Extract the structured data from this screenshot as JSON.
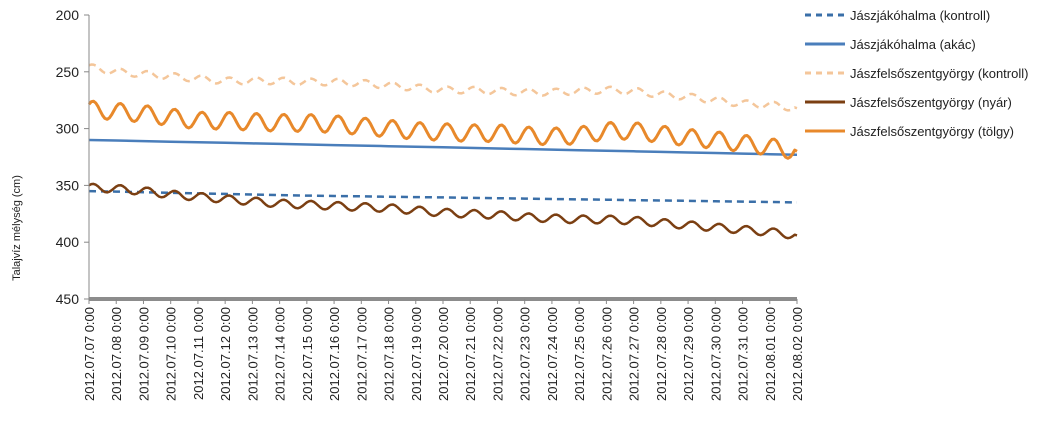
{
  "chart_data": {
    "type": "line",
    "ylabel": "Talajvíz mélység (cm)",
    "ylim": [
      200,
      450
    ],
    "y_inverted": true,
    "yticks": [
      200,
      250,
      300,
      350,
      400,
      450
    ],
    "grid": false,
    "legend_position": "right",
    "x_categories": [
      "2012.07.07 0:00",
      "2012.07.08 0:00",
      "2012.07.09 0:00",
      "2012.07.10 0:00",
      "2012.07.11 0:00",
      "2012.07.12 0:00",
      "2012.07.13 0:00",
      "2012.07.14 0:00",
      "2012.07.15 0:00",
      "2012.07.16 0:00",
      "2012.07.17 0:00",
      "2012.07.18 0:00",
      "2012.07.19 0:00",
      "2012.07.20 0:00",
      "2012.07.21 0:00",
      "2012.07.22 0:00",
      "2012.07.23 0:00",
      "2012.07.24 0:00",
      "2012.07.25 0:00",
      "2012.07.26 0:00",
      "2012.07.27 0:00",
      "2012.07.28 0:00",
      "2012.07.29 0:00",
      "2012.07.30 0:00",
      "2012.07.31 0:00",
      "2012.08.01 0:00",
      "2012.08.02 0:00"
    ],
    "series": [
      {
        "name": "Jászjákóhalma (kontroll)",
        "color": "#3a6fa8",
        "dash": "dashed",
        "values": [
          355,
          355.5,
          356,
          356.5,
          357,
          357.5,
          358,
          358.5,
          359,
          359.3,
          359.6,
          360,
          360.3,
          360.6,
          361,
          361.3,
          361.6,
          362,
          362.3,
          362.6,
          363,
          363.3,
          363.6,
          364,
          364.3,
          364.6,
          365
        ]
      },
      {
        "name": "Jászjákóhalma (akác)",
        "color": "#4a7ebb",
        "dash": "solid",
        "values": [
          310,
          310.5,
          311,
          311.5,
          312,
          312.5,
          313,
          313.5,
          314,
          314.5,
          315,
          315.5,
          316,
          316.5,
          317,
          317.5,
          318,
          318.5,
          319,
          319.5,
          320,
          320.5,
          321,
          321.5,
          322,
          322.5,
          323
        ]
      },
      {
        "name": "Jászfelsőszentgyörgy (kontroll)",
        "color": "#f4c69a",
        "dash": "dashed",
        "base": [
          246,
          250,
          252,
          254,
          256,
          258,
          258,
          258,
          259,
          259,
          260,
          262,
          264,
          266,
          266,
          267,
          268,
          268,
          267,
          266,
          267,
          270,
          272,
          275,
          278,
          279,
          282
        ],
        "daily_amplitude": 6
      },
      {
        "name": "Jászfelsőszentgyörgy (nyár)",
        "color": "#7b3f12",
        "dash": "solid",
        "base": [
          352,
          353,
          355,
          358,
          360,
          362,
          364,
          366,
          367,
          368,
          369,
          370,
          372,
          374,
          375,
          376,
          378,
          379,
          380,
          380,
          381,
          383,
          385,
          387,
          389,
          391,
          394
        ],
        "daily_amplitude": 7
      },
      {
        "name": "Jászfelsőszentgyörgy (tölgy)",
        "color": "#e8892b",
        "dash": "solid",
        "base": [
          283,
          285,
          287,
          290,
          293,
          293,
          294,
          295,
          295,
          296,
          298,
          300,
          302,
          303,
          304,
          304,
          306,
          307,
          306,
          302,
          302,
          305,
          308,
          310,
          313,
          316,
          320
        ],
        "daily_amplitude": 15
      }
    ]
  }
}
